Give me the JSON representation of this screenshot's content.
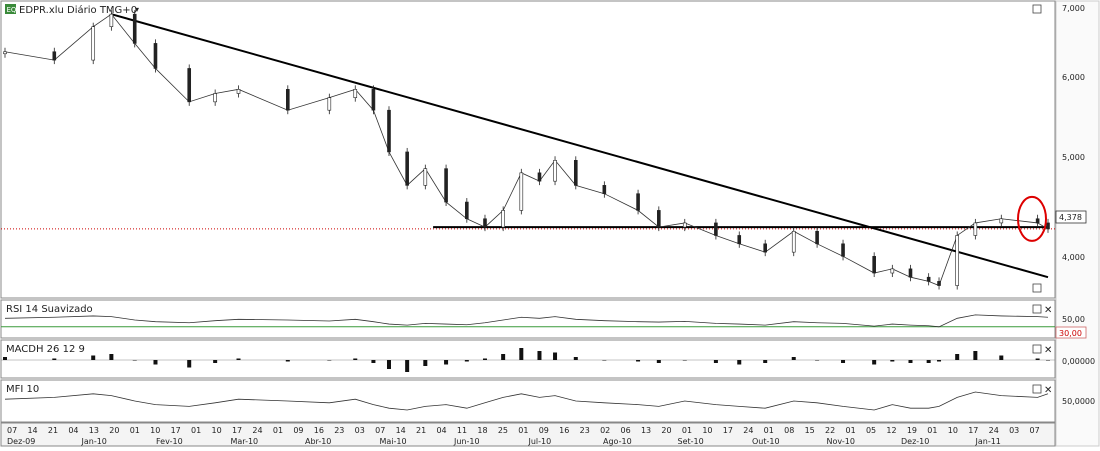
{
  "main_pane": {
    "symbol_label": "EDPR.xlu Diário TMG+0",
    "symbol_icon": "EQ",
    "price_axis_ticks": [
      "7,000",
      "6,000",
      "5,000",
      "4,000"
    ],
    "last_price": "4,378",
    "colors": {
      "last_price_line": "#cc0000",
      "highlight_circle": "#dd0000"
    }
  },
  "rsi_pane": {
    "label": "RSI 14 Suavizado",
    "ticks": [
      "50,00"
    ],
    "threshold_label": "30,00"
  },
  "macd_pane": {
    "label": "MACDH 26 12 9",
    "ticks": [
      "0,00000"
    ]
  },
  "mfi_pane": {
    "label": "MFI 10",
    "ticks": [
      "50,0000"
    ]
  },
  "x_axis": {
    "days": [
      "07",
      "14",
      "21",
      "04",
      "13",
      "20",
      "01",
      "10",
      "17",
      "01",
      "10",
      "17",
      "24",
      "01",
      "09",
      "16",
      "23",
      "03",
      "07",
      "14",
      "21",
      "04",
      "11",
      "18",
      "25",
      "01",
      "09",
      "16",
      "23",
      "02",
      "06",
      "13",
      "20",
      "01",
      "10",
      "17",
      "24",
      "01",
      "08",
      "15",
      "22",
      "01",
      "05",
      "12",
      "19",
      "01",
      "10",
      "17",
      "24",
      "03",
      "07"
    ],
    "months": [
      "Dez-09",
      "Jan-10",
      "Fev-10",
      "Mar-10",
      "Abr-10",
      "Mai-10",
      "Jun-10",
      "Jul-10",
      "Ago-10",
      "Set-10",
      "Out-10",
      "Nov-10",
      "Dez-10",
      "Jan-11"
    ]
  },
  "chart_data": [
    {
      "type": "candlestick",
      "title": "EDPR.xlu Diário TMG+0",
      "y_axis_ticks": [
        7.0,
        6.0,
        5.0,
        4.0
      ],
      "ylim": [
        3.55,
        7.05
      ],
      "x": [
        "2009-12-01",
        "2009-12-20",
        "2010-01-04",
        "2010-01-11",
        "2010-01-20",
        "2010-01-28",
        "2010-02-10",
        "2010-02-20",
        "2010-03-01",
        "2010-03-20",
        "2010-04-05",
        "2010-04-15",
        "2010-04-22",
        "2010-04-28",
        "2010-05-05",
        "2010-05-12",
        "2010-05-20",
        "2010-05-28",
        "2010-06-04",
        "2010-06-11",
        "2010-06-18",
        "2010-06-25",
        "2010-07-01",
        "2010-07-09",
        "2010-07-20",
        "2010-08-02",
        "2010-08-10",
        "2010-08-20",
        "2010-09-01",
        "2010-09-10",
        "2010-09-20",
        "2010-10-01",
        "2010-10-10",
        "2010-10-20",
        "2010-11-01",
        "2010-11-08",
        "2010-11-15",
        "2010-11-22",
        "2010-11-26",
        "2010-12-03",
        "2010-12-10",
        "2010-12-20",
        "2011-01-03",
        "2011-01-07"
      ],
      "close": [
        6.5,
        6.4,
        6.8,
        6.95,
        6.6,
        6.3,
        5.9,
        6.0,
        6.05,
        5.8,
        5.95,
        6.05,
        5.8,
        5.3,
        4.9,
        5.1,
        4.7,
        4.5,
        4.4,
        4.6,
        5.05,
        4.95,
        5.2,
        4.9,
        4.8,
        4.6,
        4.4,
        4.45,
        4.3,
        4.2,
        4.1,
        4.35,
        4.2,
        4.05,
        3.85,
        3.9,
        3.8,
        3.75,
        3.7,
        4.3,
        4.45,
        4.5,
        4.45,
        4.378
      ],
      "support_level": 4.4,
      "trendline": {
        "from": [
          "2010-01-11",
          6.95
        ],
        "to": [
          "2011-01-07",
          3.8
        ]
      },
      "last_price": 4.378
    },
    {
      "type": "line",
      "name": "RSI 14 Suavizado",
      "reference_level": 30,
      "y_axis_ticks": [
        50
      ],
      "values": [
        55,
        58,
        62,
        60,
        50,
        45,
        42,
        48,
        52,
        50,
        47,
        52,
        45,
        38,
        35,
        40,
        38,
        36,
        42,
        50,
        58,
        55,
        60,
        52,
        48,
        45,
        44,
        46,
        40,
        38,
        35,
        45,
        42,
        40,
        32,
        38,
        35,
        33,
        30,
        55,
        65,
        62,
        60,
        58
      ]
    },
    {
      "type": "bar",
      "name": "MACDH 26 12 9",
      "y_axis_ticks": [
        0
      ],
      "values": [
        0.02,
        0.01,
        0.03,
        0.04,
        0.0,
        -0.03,
        -0.05,
        -0.02,
        0.01,
        -0.01,
        0.0,
        0.01,
        -0.02,
        -0.06,
        -0.08,
        -0.04,
        -0.03,
        -0.01,
        0.01,
        0.04,
        0.08,
        0.06,
        0.05,
        0.02,
        0.0,
        -0.01,
        -0.02,
        0.0,
        -0.02,
        -0.03,
        -0.02,
        0.02,
        0.0,
        -0.02,
        -0.03,
        -0.01,
        -0.02,
        -0.02,
        -0.01,
        0.04,
        0.06,
        0.03,
        0.01,
        0.0
      ]
    },
    {
      "type": "line",
      "name": "MFI 10",
      "y_axis_ticks": [
        50
      ],
      "values": [
        55,
        60,
        70,
        65,
        50,
        40,
        35,
        45,
        55,
        50,
        45,
        55,
        40,
        30,
        25,
        35,
        40,
        30,
        45,
        60,
        70,
        60,
        65,
        50,
        45,
        40,
        35,
        50,
        40,
        35,
        30,
        50,
        45,
        35,
        25,
        40,
        30,
        30,
        35,
        60,
        75,
        65,
        60,
        70
      ]
    }
  ]
}
